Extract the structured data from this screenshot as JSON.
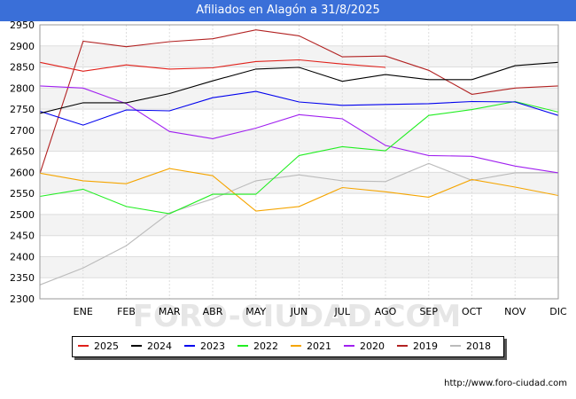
{
  "header": {
    "title": "Afiliados en Alagón a 31/8/2025"
  },
  "footer": {
    "url": "http://www.foro-ciudad.com"
  },
  "watermark": "FORO-CIUDAD.COM",
  "chart_data": {
    "type": "line",
    "title": "Afiliados en Alagón a 31/8/2025",
    "categories": [
      "",
      "ENE",
      "FEB",
      "MAR",
      "ABR",
      "MAY",
      "JUN",
      "JUL",
      "AGO",
      "SEP",
      "OCT",
      "NOV",
      "DIC"
    ],
    "ylim": [
      2300,
      2950
    ],
    "yticks": [
      2300,
      2350,
      2400,
      2450,
      2500,
      2550,
      2600,
      2650,
      2700,
      2750,
      2800,
      2850,
      2900,
      2950
    ],
    "grid": true,
    "legend_position": "bottom",
    "series": [
      {
        "name": "2025",
        "color": "#e0201a",
        "values": [
          2861,
          2840,
          2855,
          2845,
          2848,
          2863,
          2867,
          2857,
          2849,
          null,
          null,
          null,
          null
        ]
      },
      {
        "name": "2024",
        "color": "#000000",
        "values": [
          2740,
          2765,
          2765,
          2787,
          2817,
          2845,
          2849,
          2816,
          2832,
          2820,
          2820,
          2853,
          2861
        ]
      },
      {
        "name": "2023",
        "color": "#0000ee",
        "values": [
          2745,
          2712,
          2748,
          2746,
          2777,
          2792,
          2767,
          2759,
          2761,
          2763,
          2768,
          2767,
          2735
        ]
      },
      {
        "name": "2022",
        "color": "#22ee22",
        "values": [
          2543,
          2560,
          2519,
          2502,
          2548,
          2548,
          2640,
          2661,
          2651,
          2735,
          2749,
          2768,
          2743
        ]
      },
      {
        "name": "2021",
        "color": "#f5a500",
        "values": [
          2598,
          2580,
          2573,
          2609,
          2592,
          2508,
          2519,
          2564,
          2554,
          2541,
          2583,
          2565,
          2545
        ]
      },
      {
        "name": "2020",
        "color": "#a020f0",
        "values": [
          2805,
          2800,
          2763,
          2697,
          2680,
          2705,
          2737,
          2727,
          2664,
          2640,
          2638,
          2615,
          2599
        ]
      },
      {
        "name": "2019",
        "color": "#b22222",
        "values": [
          2597,
          2911,
          2898,
          2910,
          2917,
          2938,
          2924,
          2874,
          2876,
          2842,
          2785,
          2800,
          2805
        ]
      },
      {
        "name": "2018",
        "color": "#bbbbbb",
        "values": [
          2333,
          2373,
          2426,
          2504,
          2537,
          2580,
          2594,
          2580,
          2578,
          2621,
          2581,
          2599,
          2599
        ]
      }
    ]
  }
}
